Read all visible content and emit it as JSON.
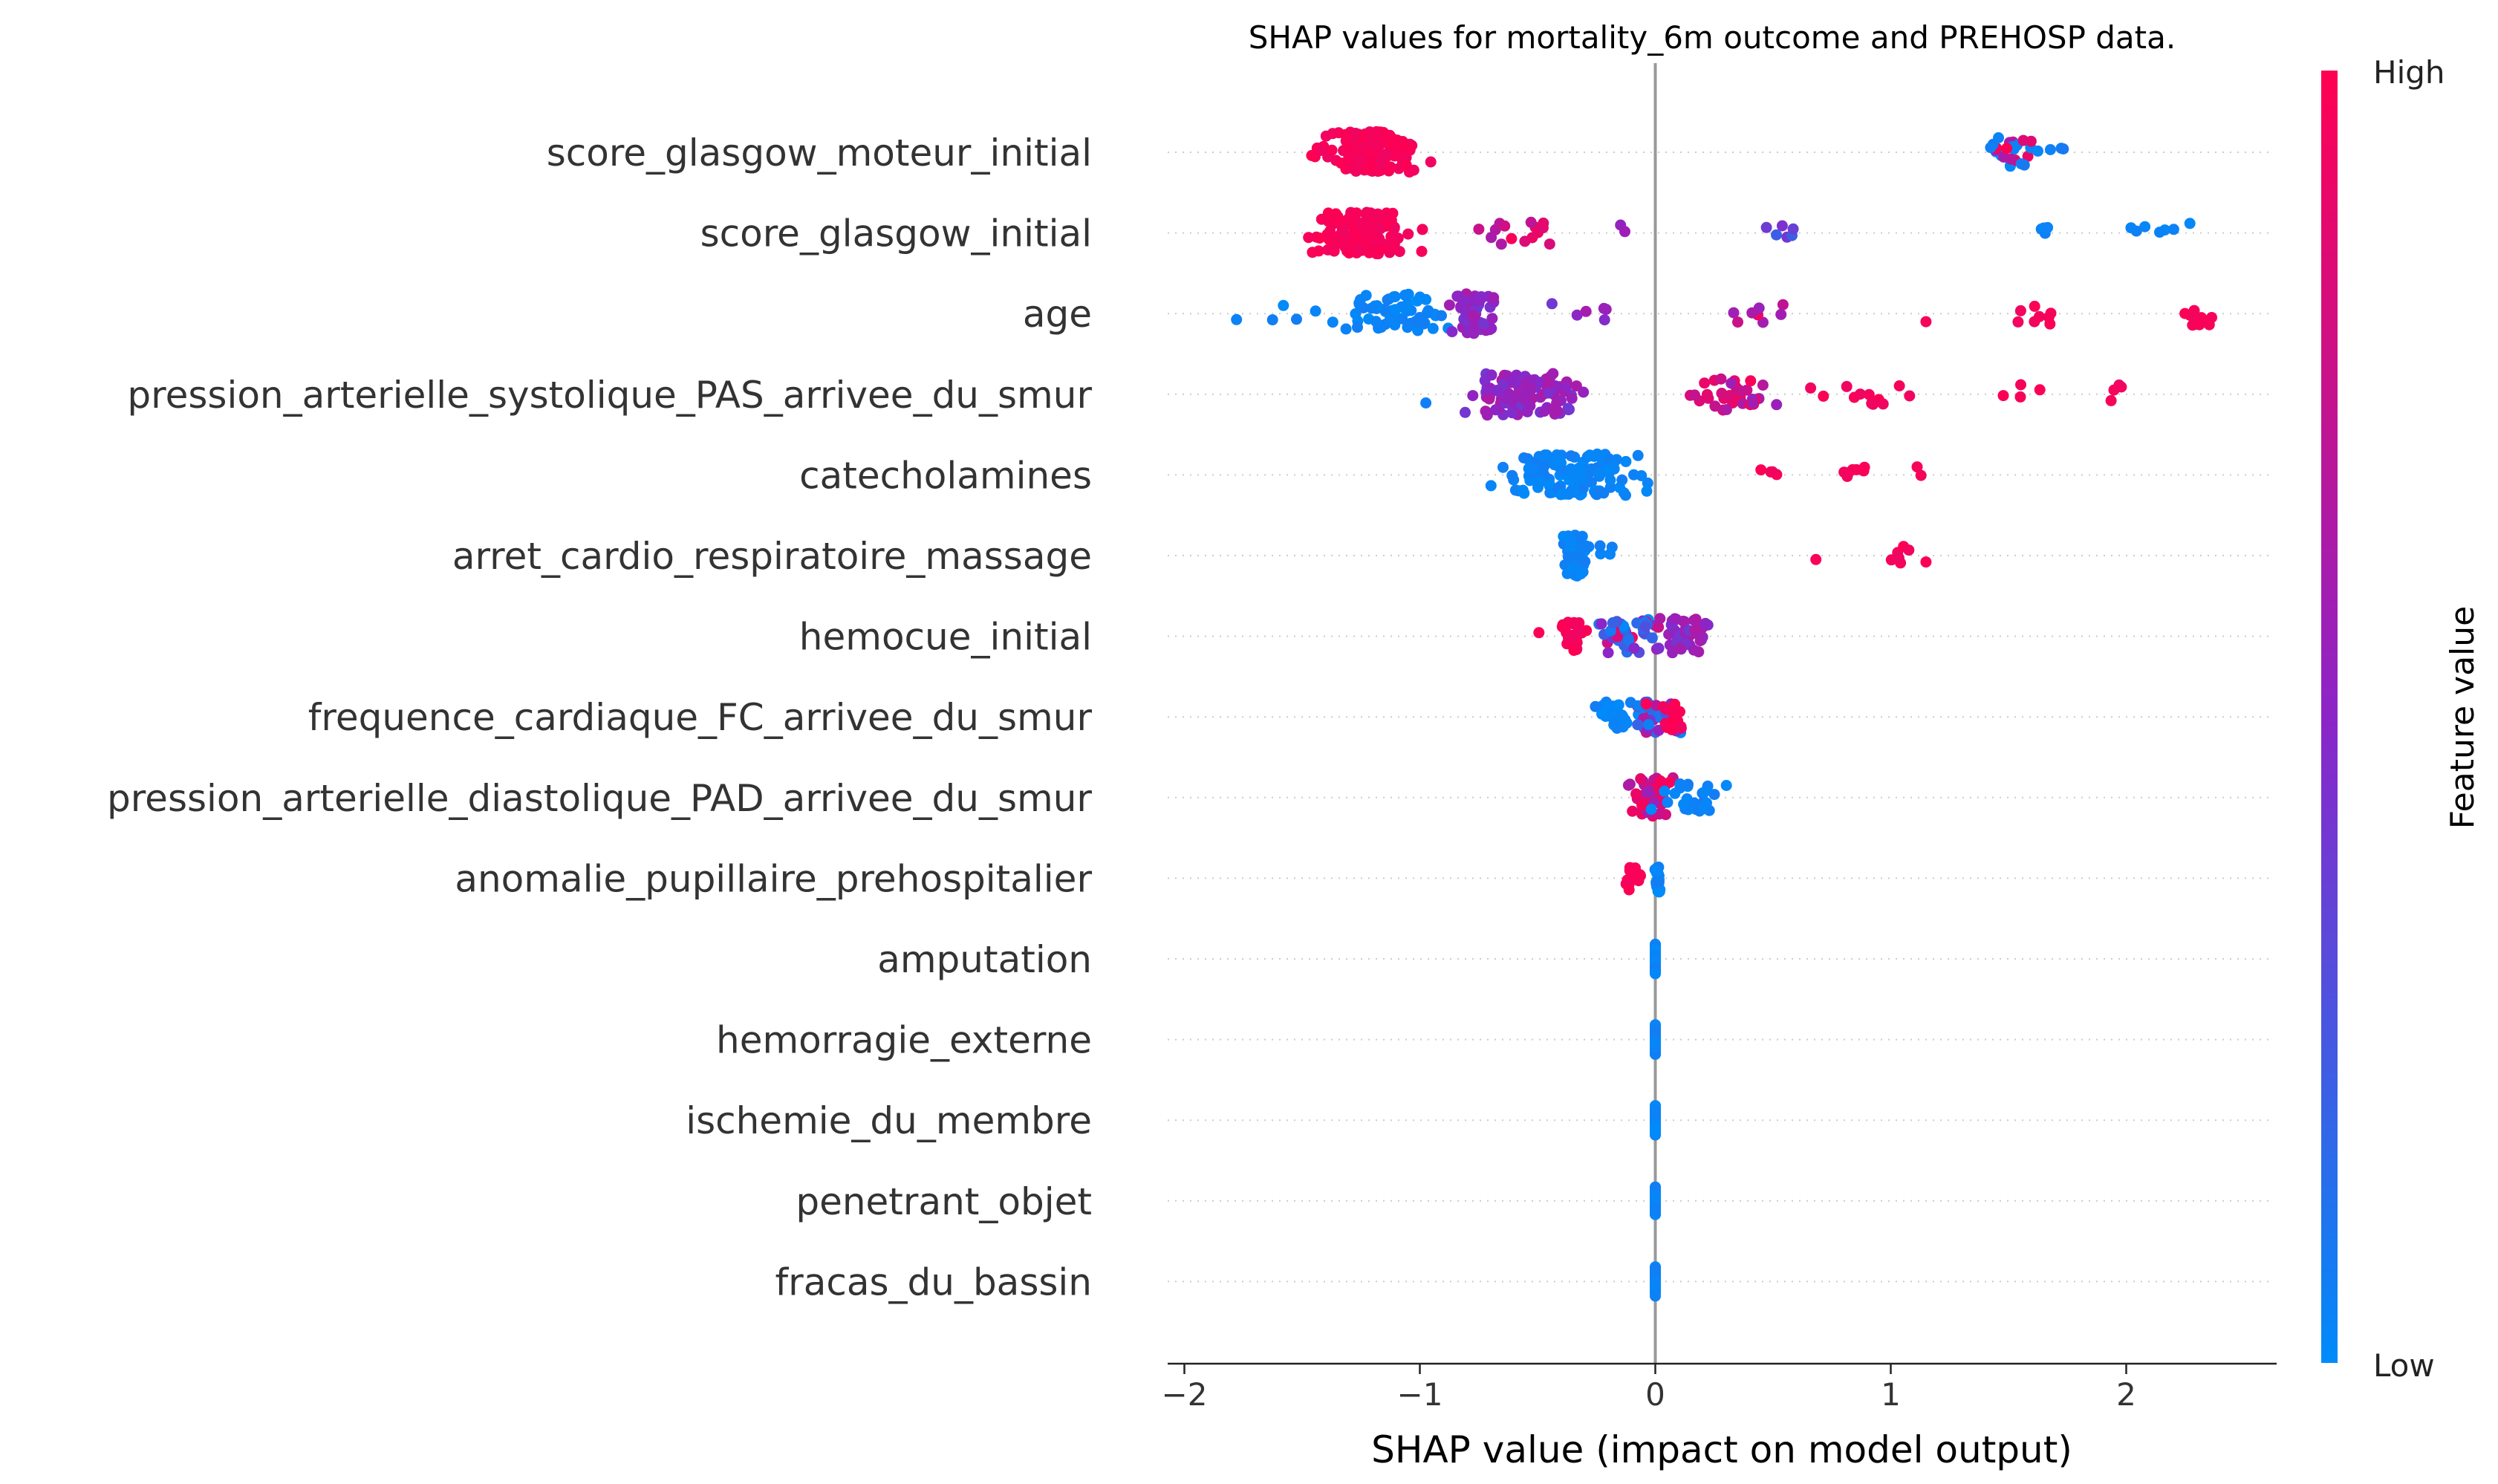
{
  "chart_data": {
    "type": "scatter",
    "subtype": "beeswarm",
    "title": "SHAP values for mortality_6m outcome and PREHOSP data.",
    "xlabel": "SHAP value (impact on model output)",
    "ylabel": "",
    "xlim": [
      -2.06,
      2.64
    ],
    "xticks": [
      {
        "value": -2,
        "label": "−2"
      },
      {
        "value": -1,
        "label": "−1"
      },
      {
        "value": 0,
        "label": "0"
      },
      {
        "value": 1,
        "label": "1"
      },
      {
        "value": 2,
        "label": "2"
      }
    ],
    "grid": false,
    "zero_line": true,
    "colorbar": {
      "title": "Feature value",
      "high_label": "High",
      "low_label": "Low",
      "high_color": "#ff0052",
      "low_color": "#008bfa"
    },
    "colors": {
      "high": "#ff0052",
      "low": "#008bfa",
      "mid": "#8c25c8",
      "zero_line": "#999999"
    },
    "features": [
      {
        "name": "score_glasgow_moteur_initial",
        "clusters": [
          {
            "center": -1.2,
            "spread": 0.17,
            "count": 130,
            "color": "high"
          },
          {
            "center": -1.42,
            "spread": 0.06,
            "count": 8,
            "color": "high"
          },
          {
            "center": 1.55,
            "spread": 0.2,
            "count": 28,
            "color": "low_mix"
          }
        ]
      },
      {
        "name": "score_glasgow_initial",
        "clusters": [
          {
            "center": -1.25,
            "spread": 0.18,
            "count": 120,
            "color": "high"
          },
          {
            "center": -0.62,
            "spread": 0.16,
            "count": 15,
            "color": "high_mix"
          },
          {
            "center": -0.1,
            "spread": 0.08,
            "count": 2,
            "color": "mid"
          },
          {
            "center": 0.55,
            "spread": 0.08,
            "count": 6,
            "color": "mid_low"
          },
          {
            "center": 1.65,
            "spread": 0.02,
            "count": 4,
            "color": "low"
          },
          {
            "center": 2.1,
            "spread": 0.3,
            "count": 7,
            "color": "low"
          }
        ]
      },
      {
        "name": "age",
        "clusters": [
          {
            "center": -1.1,
            "spread": 0.22,
            "count": 55,
            "color": "low"
          },
          {
            "center": -1.6,
            "spread": 0.25,
            "count": 6,
            "color": "low"
          },
          {
            "center": -0.77,
            "spread": 0.1,
            "count": 55,
            "color": "mid"
          },
          {
            "center": -0.3,
            "spread": 0.3,
            "count": 6,
            "color": "mid"
          },
          {
            "center": 0.4,
            "spread": 0.15,
            "count": 8,
            "color": "high_mix"
          },
          {
            "center": 1.6,
            "spread": 0.15,
            "count": 8,
            "color": "high"
          },
          {
            "center": 2.3,
            "spread": 0.06,
            "count": 14,
            "color": "high"
          },
          {
            "center": 1.15,
            "spread": 0.02,
            "count": 1,
            "color": "high"
          }
        ]
      },
      {
        "name": "pression_arterielle_systolique_PAS_arrivee_du_smur",
        "clusters": [
          {
            "center": -0.55,
            "spread": 0.22,
            "count": 110,
            "color": "mid"
          },
          {
            "center": -0.95,
            "spread": 0.02,
            "count": 1,
            "color": "low"
          },
          {
            "center": 0.3,
            "spread": 0.22,
            "count": 35,
            "color": "high_mix"
          },
          {
            "center": 0.85,
            "spread": 0.2,
            "count": 12,
            "color": "high"
          },
          {
            "center": 1.6,
            "spread": 0.1,
            "count": 4,
            "color": "high"
          },
          {
            "center": 1.95,
            "spread": 0.1,
            "count": 4,
            "color": "high"
          }
        ]
      },
      {
        "name": "catecholamines",
        "clusters": [
          {
            "center": -0.35,
            "spread": 0.25,
            "count": 140,
            "color": "low"
          },
          {
            "center": 0.5,
            "spread": 0.06,
            "count": 4,
            "color": "high"
          },
          {
            "center": 0.85,
            "spread": 0.12,
            "count": 7,
            "color": "high"
          },
          {
            "center": 1.12,
            "spread": 0.02,
            "count": 2,
            "color": "high"
          }
        ]
      },
      {
        "name": "arret_cardio_respiratoire_massage",
        "clusters": [
          {
            "center": -0.34,
            "spread": 0.05,
            "count": 60,
            "color": "low"
          },
          {
            "center": -0.22,
            "spread": 0.08,
            "count": 6,
            "color": "low"
          },
          {
            "center": 0.68,
            "spread": 0.01,
            "count": 1,
            "color": "high"
          },
          {
            "center": 1.06,
            "spread": 0.1,
            "count": 7,
            "color": "high"
          }
        ]
      },
      {
        "name": "hemocue_initial",
        "clusters": [
          {
            "center": -0.35,
            "spread": 0.04,
            "count": 30,
            "color": "high"
          },
          {
            "center": -0.5,
            "spread": 0.02,
            "count": 1,
            "color": "high"
          },
          {
            "center": -0.13,
            "spread": 0.12,
            "count": 40,
            "color": "mid_mix"
          },
          {
            "center": 0.14,
            "spread": 0.12,
            "count": 45,
            "color": "mid"
          }
        ]
      },
      {
        "name": "frequence_cardiaque_FC_arrivee_du_smur",
        "clusters": [
          {
            "center": -0.15,
            "spread": 0.12,
            "count": 30,
            "color": "low"
          },
          {
            "center": 0.0,
            "spread": 0.09,
            "count": 35,
            "color": "mid_mix"
          },
          {
            "center": 0.08,
            "spread": 0.05,
            "count": 20,
            "color": "high"
          }
        ]
      },
      {
        "name": "pression_arterielle_diastolique_PAD_arrivee_du_smur",
        "clusters": [
          {
            "center": -0.02,
            "spread": 0.08,
            "count": 55,
            "color": "high_mix"
          },
          {
            "center": 0.15,
            "spread": 0.12,
            "count": 25,
            "color": "low"
          }
        ]
      },
      {
        "name": "anomalie_pupillaire_prehospitalier",
        "clusters": [
          {
            "center": -0.08,
            "spread": 0.04,
            "count": 16,
            "color": "high"
          },
          {
            "center": 0.01,
            "spread": 0.01,
            "count": 26,
            "color": "low"
          }
        ]
      },
      {
        "name": "amputation",
        "clusters": [
          {
            "center": 0.0,
            "spread": 0.0,
            "count": 60,
            "color": "low"
          }
        ]
      },
      {
        "name": "hemorragie_externe",
        "clusters": [
          {
            "center": 0.0,
            "spread": 0.0,
            "count": 60,
            "color": "low"
          }
        ]
      },
      {
        "name": "ischemie_du_membre",
        "clusters": [
          {
            "center": 0.0,
            "spread": 0.0,
            "count": 60,
            "color": "low"
          }
        ]
      },
      {
        "name": "penetrant_objet",
        "clusters": [
          {
            "center": 0.0,
            "spread": 0.0,
            "count": 60,
            "color": "low"
          }
        ]
      },
      {
        "name": "fracas_du_bassin",
        "clusters": [
          {
            "center": 0.0,
            "spread": 0.0,
            "count": 60,
            "color": "low"
          }
        ]
      }
    ]
  }
}
